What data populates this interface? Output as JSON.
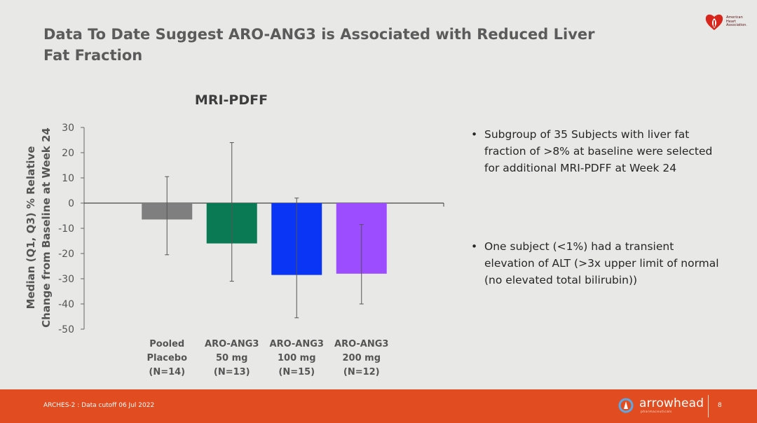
{
  "slide": {
    "title": "Data To Date Suggest ARO-ANG3 is Associated with Reduced Liver Fat Fraction",
    "bullets": [
      "Subgroup of 35 Subjects with liver fat fraction of >8% at baseline were selected for additional MRI-PDFF at Week 24",
      "One subject (<1%) had a transient elevation of ALT (>3x upper limit of normal (no elevated total bilirubin))"
    ]
  },
  "logos": {
    "aha_text": "American\nHeart\nAssociation.",
    "arrowhead_name": "arrowhead",
    "arrowhead_sub": "pharmaceuticals"
  },
  "footer": {
    "left_text": "ARCHES-2 : Data cutoff 06 Jul 2022",
    "page_number": "8"
  },
  "chart_data": {
    "type": "bar",
    "title": "MRI-PDFF",
    "ylabel_lines": [
      "Median (Q1, Q3)  % Relative",
      "Change from Baseline at Week 24"
    ],
    "ylim": [
      -50,
      30
    ],
    "yticks": [
      30,
      20,
      10,
      0,
      -10,
      -20,
      -30,
      -40,
      -50
    ],
    "grid": false,
    "categories": [
      [
        "Pooled",
        "Placebo",
        "(N=14)"
      ],
      [
        "ARO-ANG3",
        "50 mg",
        "(N=13)"
      ],
      [
        "ARO-ANG3",
        "100 mg",
        "(N=15)"
      ],
      [
        "ARO-ANG3",
        "200 mg",
        "(N=12)"
      ]
    ],
    "values": [
      -6.5,
      -16,
      -28.5,
      -28
    ],
    "q1": [
      -20.5,
      -31,
      -45.5,
      -40
    ],
    "q3": [
      10.5,
      24,
      2,
      -8.5
    ],
    "colors": [
      "#7f7f7f",
      "#0a7a55",
      "#0a35f5",
      "#9b4dff"
    ]
  }
}
